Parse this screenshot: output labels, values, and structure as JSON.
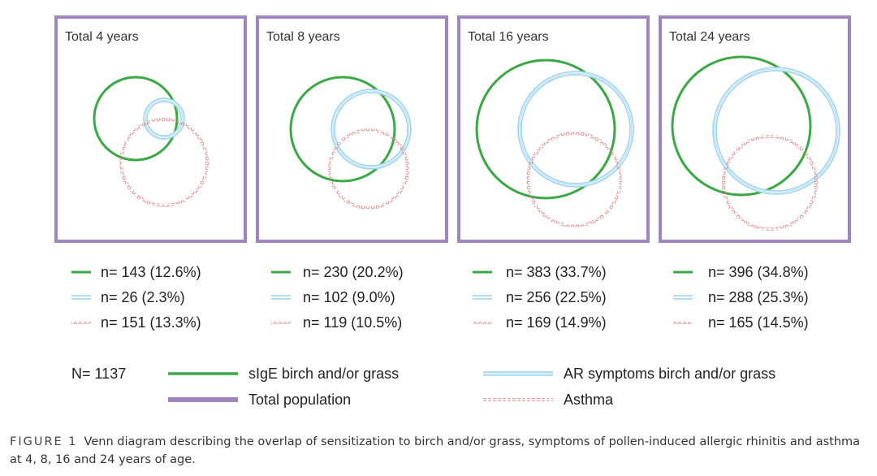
{
  "colors": {
    "sige": "#3aa845",
    "ar": "#9fd4ee",
    "asthma": "#e07a7a",
    "population": "#9f86c0"
  },
  "panels": [
    {
      "title": "Total 4 years",
      "counts": {
        "sige": "n= 143 (12.6%)",
        "ar": "n= 26 (2.3%)",
        "asthma": "n= 151 (13.3%)"
      }
    },
    {
      "title": "Total 8 years",
      "counts": {
        "sige": "n= 230 (20.2%)",
        "ar": "n= 102 (9.0%)",
        "asthma": "n= 119 (10.5%)"
      }
    },
    {
      "title": "Total 16 years",
      "counts": {
        "sige": "n= 383 (33.7%)",
        "ar": "n= 256 (22.5%)",
        "asthma": "n= 169 (14.9%)"
      }
    },
    {
      "title": "Total 24 years",
      "counts": {
        "sige": "n= 396 (34.8%)",
        "ar": "n= 288 (25.3%)",
        "asthma": "n= 165 (14.5%)"
      }
    }
  ],
  "legend": {
    "total_n": "N= 1137",
    "sige": "sIgE birch and/or grass",
    "population": "Total population",
    "ar": "AR symptoms birch and/or grass",
    "asthma": "Asthma"
  },
  "caption": {
    "label": "FIGURE 1",
    "text": "Venn diagram describing the overlap of sensitization to birch and/or grass, symptoms of pollen-induced allergic rhinitis and asthma at 4, 8, 16 and 24 years of age."
  }
}
